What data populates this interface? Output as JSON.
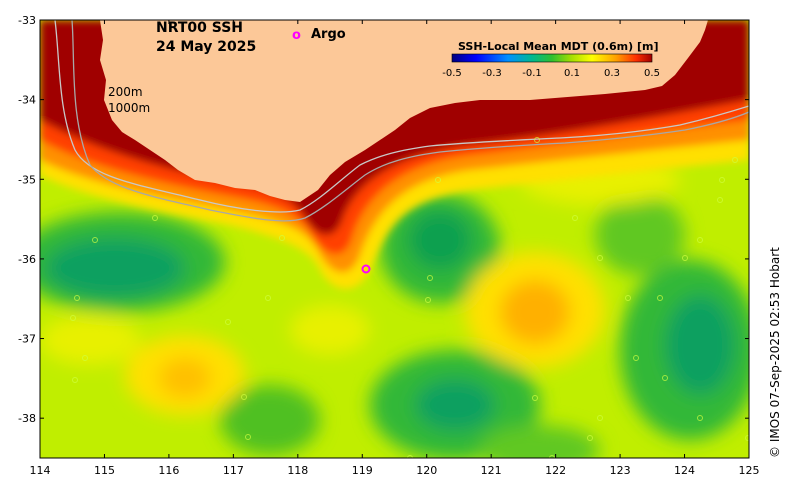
{
  "map": {
    "title_line1": "NRT00 SSH",
    "title_line2": "24 May 2025",
    "legend_label": "Argo",
    "legend_symbol": "o",
    "argo_color": "#ff00ff",
    "colorbar": {
      "title": "SSH-Local Mean MDT (0.6m) [m]",
      "ticks": [
        "-0.5",
        "-0.3",
        "-0.1",
        "0.1",
        "0.3",
        "0.5"
      ],
      "colors": [
        "#000080",
        "#0000ff",
        "#0080ff",
        "#00c0c0",
        "#00a060",
        "#30c030",
        "#a0e000",
        "#ffff00",
        "#ffa000",
        "#ff4000",
        "#a00000"
      ]
    },
    "isobaths": [
      "200m",
      "1000m"
    ],
    "x_ticks": [
      "114",
      "115",
      "116",
      "117",
      "118",
      "119",
      "120",
      "121",
      "122",
      "123",
      "124",
      "125"
    ],
    "y_ticks": [
      "-33",
      "-34",
      "-35",
      "-36",
      "-37",
      "-38"
    ],
    "credit": "© IMOS 07-Sep-2025 02:53 Hobart",
    "colors": {
      "land": "#fcc898",
      "background_field": "#c8f000",
      "frame": "#000000"
    }
  },
  "chart_data": {
    "type": "heatmap",
    "title": "NRT00 SSH 24 May 2025",
    "variable": "SSH-Local Mean MDT (0.6m) [m]",
    "xlim": [
      114,
      125
    ],
    "ylim": [
      -38.5,
      -33
    ],
    "color_range": [
      -0.5,
      0.5
    ],
    "features": [
      {
        "name": "warm-eddy",
        "lon": 121.8,
        "lat": -36.7,
        "value": 0.3
      },
      {
        "name": "warm-eddy",
        "lon": 116.3,
        "lat": -37.5,
        "value": 0.3
      },
      {
        "name": "cold-eddy",
        "lon": 120.2,
        "lat": -35.9,
        "value": -0.1
      },
      {
        "name": "cold-eddy",
        "lon": 115.3,
        "lat": -36.1,
        "value": -0.1
      },
      {
        "name": "cold-eddy",
        "lon": 120.4,
        "lat": -37.9,
        "value": -0.1
      },
      {
        "name": "cold-eddy",
        "lon": 124.2,
        "lat": -37.2,
        "value": -0.1
      },
      {
        "name": "shelf-high",
        "lon": 118.7,
        "lat": -35.8,
        "value": 0.5
      }
    ],
    "argo_floats": [
      {
        "lon": 119.05,
        "lat": -36.13
      }
    ]
  }
}
